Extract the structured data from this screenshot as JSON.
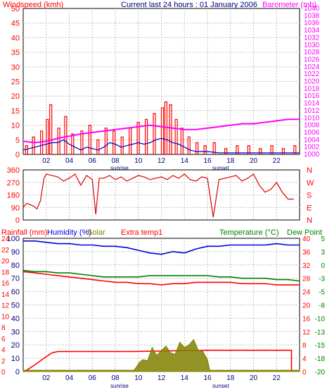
{
  "chart_data": [
    {
      "type": "line",
      "title": "Current last 24 hours : 01 January 2006",
      "left_axis_label": "Windspeed (kmh)",
      "right_axis_label": "Barometer (mb)",
      "x_ticks": [
        "02",
        "04",
        "06",
        "08",
        "10",
        "12",
        "14",
        "16",
        "18",
        "20",
        "22"
      ],
      "x_annotations": {
        "sunrise": "sunrise",
        "sunset": "sunset"
      },
      "left_ticks": [
        "0",
        "5",
        "10",
        "15",
        "20",
        "25",
        "30",
        "35",
        "40",
        "45",
        "50"
      ],
      "right_ticks": [
        "1000",
        "1002",
        "1004",
        "1006",
        "1008",
        "1010",
        "1012",
        "1014",
        "1016",
        "1018",
        "1020",
        "1022",
        "1024",
        "1026",
        "1028",
        "1030",
        "1032",
        "1034",
        "1036",
        "1038",
        "1040"
      ],
      "ylim_left": [
        0,
        50
      ],
      "ylim_right": [
        1000,
        1040
      ],
      "xlim_hours": [
        0,
        24
      ],
      "series": [
        {
          "axis": "left",
          "color": "#ff0000",
          "style": "gust-steps",
          "x": [
            0.2,
            0.8,
            1.5,
            2.0,
            2.3,
            3.0,
            3.6,
            4.2,
            5.0,
            5.7,
            6.4,
            7.1,
            7.8,
            8.5,
            9.2,
            9.9,
            10.6,
            11.3,
            12.0,
            12.3,
            12.7,
            13.2,
            13.7,
            14.3,
            15.0,
            15.7,
            16.5,
            17.5,
            18.5,
            19.5,
            20.5,
            21.5,
            22.5,
            23.5
          ],
          "y": [
            3,
            6,
            8,
            12,
            17,
            9,
            13,
            7,
            8,
            10,
            5,
            9,
            8,
            6,
            9,
            11,
            12,
            14,
            16,
            18,
            17,
            12,
            9,
            6,
            4,
            3,
            4,
            2,
            3,
            3,
            2,
            3,
            2,
            3
          ]
        },
        {
          "axis": "left",
          "color": "#0000cc",
          "x": [
            0,
            1,
            1.5,
            2,
            2.5,
            3,
            3.5,
            4,
            4.5,
            5,
            5.5,
            6,
            6.5,
            7,
            7.5,
            8,
            8.5,
            9,
            9.5,
            10,
            10.5,
            11,
            11.5,
            12,
            12.5,
            13,
            13.5,
            14,
            14.5,
            15,
            16,
            17,
            18,
            19,
            20,
            21,
            22,
            23,
            24
          ],
          "y": [
            1.5,
            2.5,
            3,
            3.5,
            4,
            4,
            5,
            3.5,
            2.5,
            1.5,
            2.5,
            2,
            1.5,
            2.5,
            4,
            3.5,
            2.5,
            3,
            3.5,
            4,
            3.5,
            4,
            5,
            5.5,
            5,
            4,
            3.5,
            2.5,
            1.5,
            1,
            1,
            0.5,
            0.5,
            0.5,
            0.5,
            0.5,
            0.5,
            0.5,
            0.5
          ]
        },
        {
          "axis": "right",
          "color": "#ff00ff",
          "name": "Barometer",
          "x": [
            0,
            1,
            2,
            3,
            4,
            5,
            6,
            7,
            8,
            9,
            10,
            11,
            12,
            13,
            14,
            15,
            16,
            17,
            18,
            19,
            20,
            21,
            22,
            23,
            24
          ],
          "y": [
            1003.6,
            1003.2,
            1003.6,
            1004.4,
            1005.0,
            1005.6,
            1006.0,
            1006.4,
            1006.8,
            1007.2,
            1007.6,
            1008.0,
            1007.6,
            1007.2,
            1006.8,
            1006.8,
            1007.2,
            1007.6,
            1008.0,
            1008.4,
            1008.4,
            1008.8,
            1009.2,
            1009.6,
            1009.6
          ]
        }
      ]
    },
    {
      "type": "line",
      "left_ticks": [
        "0",
        "90",
        "180",
        "270",
        "360"
      ],
      "right_ticks": [
        "N",
        "E",
        "S",
        "W",
        "N"
      ],
      "ylim": [
        0,
        360
      ],
      "series": [
        {
          "color": "#dd0000",
          "name": "Wind direction",
          "x": [
            0,
            0.3,
            0.6,
            0.9,
            1.2,
            1.5,
            1.8,
            2.0,
            2.5,
            3.0,
            3.5,
            4.0,
            4.5,
            5.0,
            5.5,
            6.0,
            6.3,
            6.6,
            7.0,
            7.5,
            8.0,
            8.5,
            9.0,
            9.5,
            10.0,
            10.5,
            11.0,
            11.5,
            12.0,
            12.5,
            13.0,
            13.5,
            14.0,
            14.5,
            15.0,
            15.5,
            16.0,
            16.5,
            17.0,
            17.5,
            18.0,
            18.5,
            19.0,
            19.5,
            20.0,
            20.5,
            21.0,
            21.5,
            22.0,
            22.5,
            23.0,
            23.5
          ],
          "y": [
            90,
            120,
            110,
            100,
            80,
            140,
            300,
            330,
            320,
            310,
            280,
            300,
            330,
            250,
            320,
            290,
            40,
            300,
            300,
            320,
            290,
            310,
            280,
            300,
            320,
            310,
            290,
            300,
            310,
            290,
            320,
            300,
            330,
            290,
            280,
            310,
            300,
            20,
            290,
            300,
            310,
            320,
            280,
            300,
            330,
            250,
            200,
            220,
            270,
            200,
            150,
            150
          ]
        }
      ]
    },
    {
      "type": "line",
      "left_axis_labels": [
        "Rainfall (mm)",
        "Humidity (%)",
        "Solar",
        "Extra temp1"
      ],
      "right_axis_labels": [
        "Temperature (°C)",
        "Dew Point"
      ],
      "x_ticks": [
        "02",
        "04",
        "06",
        "08",
        "10",
        "12",
        "14",
        "16",
        "18",
        "20",
        "22"
      ],
      "x_annotations": {
        "sunrise": "sunrise",
        "sunset": "sunset"
      },
      "left_ticks": [
        "0",
        "10",
        "20",
        "30",
        "40",
        "50",
        "60",
        "70",
        "80",
        "90",
        "100"
      ],
      "left_ticks_rain": [
        "0",
        "2",
        "4",
        "6",
        "8",
        "10",
        "12",
        "14",
        "16",
        "18",
        "20",
        "22",
        "24"
      ],
      "right_ticks_temp": [
        "0",
        "4",
        "8",
        "12",
        "16",
        "20",
        "24",
        "28",
        "32",
        "36",
        "40"
      ],
      "right_ticks_dew": [
        "-20",
        "-18",
        "-15",
        "-13",
        "-10",
        "-8",
        "-5",
        "-3",
        "0",
        "3",
        "5"
      ],
      "ylim_percent": [
        0,
        100
      ],
      "series": [
        {
          "name": "Humidity",
          "color": "#0000dd",
          "axis": "percent",
          "x": [
            0,
            1,
            2,
            3,
            4,
            5,
            6,
            7,
            8,
            9,
            10,
            11,
            12,
            13,
            14,
            15,
            16,
            17,
            18,
            19,
            20,
            21,
            22,
            23,
            24
          ],
          "y": [
            98,
            98,
            97,
            96,
            96,
            95,
            95,
            94,
            94,
            93,
            91,
            89,
            88,
            90,
            89,
            92,
            94,
            94,
            95,
            95,
            95,
            95,
            96,
            95,
            95
          ]
        },
        {
          "name": "Temperature",
          "color": "#008000",
          "axis": "percent",
          "x": [
            0,
            1,
            2,
            3,
            4,
            5,
            6,
            7,
            8,
            9,
            10,
            11,
            12,
            13,
            14,
            15,
            16,
            17,
            18,
            19,
            20,
            21,
            22,
            23,
            24
          ],
          "y": [
            76,
            75,
            75,
            74,
            74,
            73,
            72,
            71,
            71,
            71,
            71,
            72,
            72,
            72,
            72,
            72,
            72,
            71,
            71,
            70,
            70,
            70,
            69,
            69,
            68
          ]
        },
        {
          "name": "Dew Point",
          "color": "#ff0000",
          "axis": "percent",
          "x": [
            0,
            1,
            2,
            3,
            4,
            5,
            6,
            7,
            8,
            9,
            10,
            11,
            12,
            13,
            14,
            15,
            16,
            17,
            18,
            19,
            20,
            21,
            22,
            23,
            24
          ],
          "y": [
            75,
            74,
            73,
            72,
            71,
            70,
            69,
            68,
            67,
            67,
            66,
            66,
            65,
            66,
            66,
            67,
            67,
            67,
            67,
            66,
            66,
            66,
            65,
            65,
            65
          ]
        },
        {
          "name": "Rainfall",
          "color": "#ff0000",
          "axis": "percent",
          "x": [
            0,
            0.3,
            1.0,
            1.8,
            2.5,
            3.0,
            9.5,
            16.0,
            23.3,
            23.3
          ],
          "y": [
            0,
            1,
            5,
            10,
            14,
            15,
            15,
            16,
            16,
            0
          ]
        },
        {
          "name": "Solar",
          "color": "#808000",
          "axis": "percent",
          "style": "area",
          "x": [
            0,
            9.6,
            9.8,
            10.1,
            10.4,
            10.8,
            11.2,
            11.6,
            12.0,
            12.4,
            12.8,
            13.2,
            13.6,
            14.0,
            14.4,
            14.8,
            15.2,
            15.6,
            16.0,
            16.2,
            24
          ],
          "y": [
            1,
            1,
            3,
            7,
            9,
            8,
            18,
            12,
            16,
            19,
            14,
            13,
            22,
            18,
            20,
            24,
            16,
            15,
            9,
            1,
            1
          ]
        }
      ]
    }
  ],
  "colors": {
    "red": "#ff0000",
    "blue": "#0000cc",
    "magenta": "#ff00ff",
    "green": "#008000",
    "olive": "#808000"
  }
}
